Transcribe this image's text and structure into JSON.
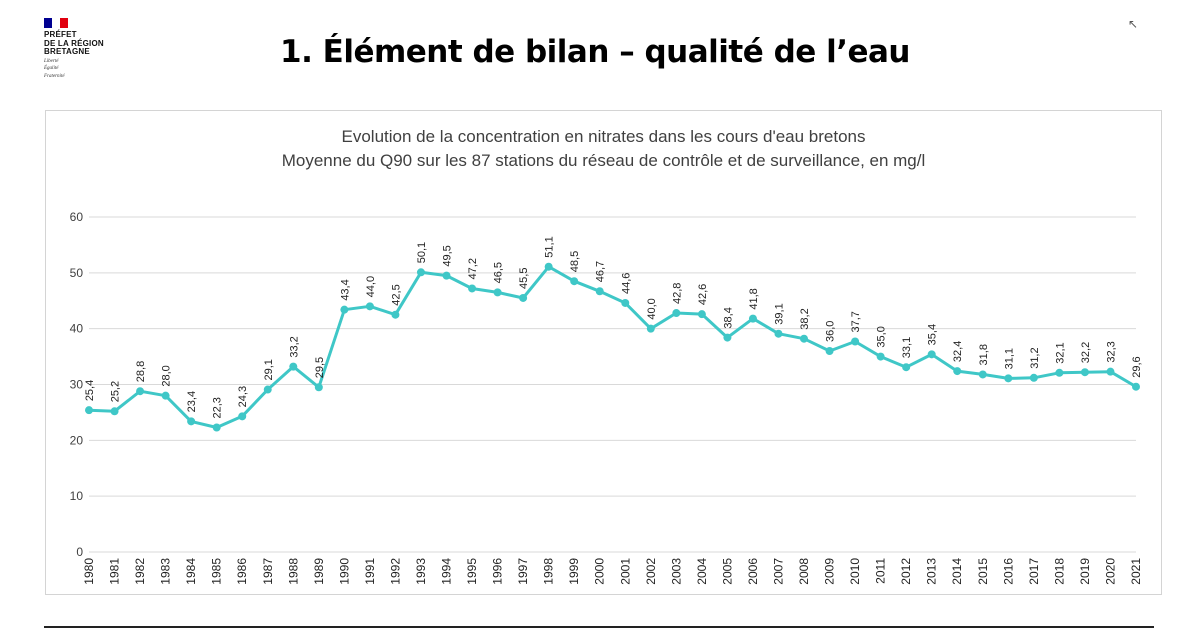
{
  "logo": {
    "lines": [
      "PRÉFET",
      "DE LA RÉGION",
      "BRETAGNE"
    ],
    "motto": [
      "Liberté",
      "Égalité",
      "Fraternité"
    ],
    "flag_colors": [
      "#000091",
      "#ffffff",
      "#e1000f"
    ]
  },
  "page": {
    "title": "1. Élément de bilan – qualité de l’eau"
  },
  "colors": {
    "line": "#3fc7c7",
    "grid": "#d9d9d9",
    "text": "#404040"
  },
  "chart_data": {
    "type": "line",
    "title": "Evolution de la concentration en nitrates dans les cours d'eau bretons",
    "subtitle": "Moyenne du Q90 sur les 87 stations du réseau de contrôle et de surveillance, en mg/l",
    "xlabel": "",
    "ylabel": "",
    "ylim": [
      0,
      60
    ],
    "yticks": [
      "0",
      "10",
      "20",
      "30",
      "40",
      "50",
      "60"
    ],
    "grid": true,
    "categories": [
      "1980",
      "1981",
      "1982",
      "1983",
      "1984",
      "1985",
      "1986",
      "1987",
      "1988",
      "1989",
      "1990",
      "1991",
      "1992",
      "1993",
      "1994",
      "1995",
      "1996",
      "1997",
      "1998",
      "1999",
      "2000",
      "2001",
      "2002",
      "2003",
      "2004",
      "2005",
      "2006",
      "2007",
      "2008",
      "2009",
      "2010",
      "2011",
      "2012",
      "2013",
      "2014",
      "2015",
      "2016",
      "2017",
      "2018",
      "2019",
      "2020",
      "2021"
    ],
    "values": [
      25.4,
      25.2,
      28.8,
      28.0,
      23.4,
      22.3,
      24.3,
      29.1,
      33.2,
      29.5,
      43.4,
      44.0,
      42.5,
      50.1,
      49.5,
      47.2,
      46.5,
      45.5,
      51.1,
      48.5,
      46.7,
      44.6,
      40.0,
      42.8,
      42.6,
      38.4,
      41.8,
      39.1,
      38.2,
      36.0,
      37.7,
      35.0,
      33.1,
      35.4,
      32.4,
      31.8,
      31.1,
      31.2,
      32.1,
      32.2,
      32.3,
      29.6
    ],
    "data_labels": [
      "25,4",
      "25,2",
      "28,8",
      "28,0",
      "23,4",
      "22,3",
      "24,3",
      "29,1",
      "33,2",
      "29,5",
      "43,4",
      "44,0",
      "42,5",
      "50,1",
      "49,5",
      "47,2",
      "46,5",
      "45,5",
      "51,1",
      "48,5",
      "46,7",
      "44,6",
      "40,0",
      "42,8",
      "42,6",
      "38,4",
      "41,8",
      "39,1",
      "38,2",
      "36,0",
      "37,7",
      "35,0",
      "33,1",
      "35,4",
      "32,4",
      "31,8",
      "31,1",
      "31,2",
      "32,1",
      "32,2",
      "32,3",
      "29,6"
    ]
  }
}
